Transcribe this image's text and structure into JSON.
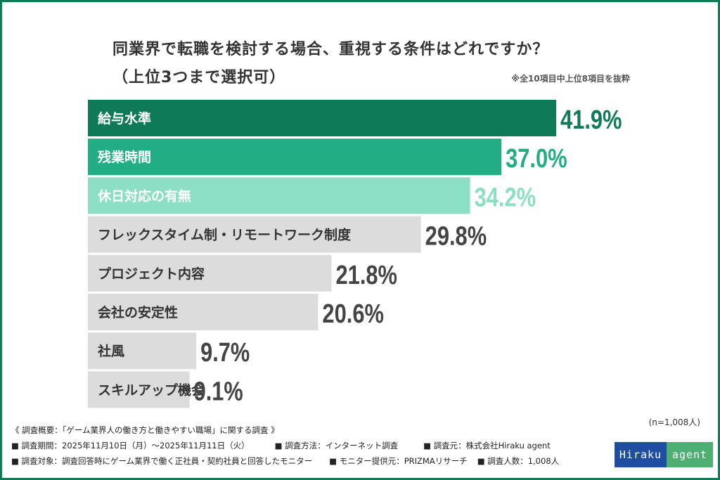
{
  "chart_data": {
    "type": "bar",
    "orientation": "horizontal",
    "title": "同業界で転職を検討する場合、重視する条件はどれですか？",
    "subtitle": "（上位3つまで選択可）",
    "note": "※全10項目中上位8項目を抜粋",
    "categories": [
      "給与水準",
      "残業時間",
      "休日対応の有無",
      "フレックスタイム制・リモートワーク制度",
      "プロジェクト内容",
      "会社の安定性",
      "社風",
      "スキルアップ機会"
    ],
    "values": [
      41.9,
      37.0,
      34.2,
      29.8,
      21.8,
      20.6,
      9.7,
      9.1
    ],
    "value_labels": [
      "41.9%",
      "37.0%",
      "34.2%",
      "29.8%",
      "21.8%",
      "20.6%",
      "9.7%",
      "9.1%"
    ],
    "unit": "%",
    "xlim": [
      0,
      41.9
    ],
    "colors": {
      "rank1": "#0f7a58",
      "rank2": "#22ad84",
      "rank3": "#8cdfc4",
      "other": "#dcdcdc",
      "other_text": "#444444"
    }
  },
  "sample_size": "(n=1,008人)",
  "footer": {
    "line1": "《 調査概要：「ゲーム業界人の働き方と働きやすい職場」に関する調査 》",
    "period": "■ 調査期間：2025年11月10日（月）～2025年11月11日（火）",
    "method": "■ 調査方法：インターネット調査",
    "source": "■ 調査元：株式会社Hiraku agent",
    "target": "■ 調査対象：調査回答時にゲーム業界で働く正社員・契約社員と回答したモニター",
    "provider": "■ モニター提供元：PRIZMAリサーチ",
    "count": "■ 調査人数：1,008人"
  },
  "logo": {
    "left": "Hiraku",
    "right": "agent"
  }
}
